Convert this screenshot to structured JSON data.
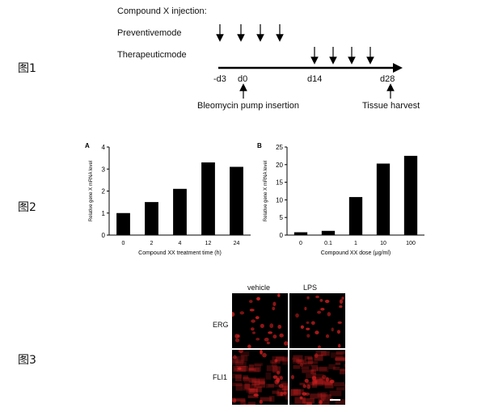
{
  "labels": {
    "fig1": "图1",
    "fig2": "图2",
    "fig3": "图3"
  },
  "timeline": {
    "title": "Compound X injection:",
    "preventive": "Preventivemode",
    "therapeutic": "Therapeuticmode",
    "ticks": [
      "-d3",
      "d0",
      "d14",
      "d28"
    ],
    "bleomycin": "Bleomycin pump insertion",
    "harvest": "Tissue harvest"
  },
  "chart_data": [
    {
      "type": "bar",
      "panel": "A",
      "categories": [
        "0",
        "2",
        "4",
        "12",
        "24"
      ],
      "values": [
        1.0,
        1.5,
        2.1,
        3.3,
        3.1
      ],
      "xlabel": "Compound XX treatment time (h)",
      "ylabel": "Relative gene X mRNA level",
      "ylim": [
        0,
        4
      ],
      "yticks": [
        "0",
        "1",
        "2",
        "3",
        "4"
      ]
    },
    {
      "type": "bar",
      "panel": "B",
      "categories": [
        "0",
        "0.1",
        "1",
        "10",
        "100"
      ],
      "values": [
        0.8,
        1.2,
        10.8,
        20.3,
        22.5
      ],
      "xlabel": "Compound XX dose (μg/ml)",
      "ylabel": "Relative gene X mRNA level",
      "ylim": [
        0,
        25
      ],
      "yticks": [
        "0",
        "5",
        "10",
        "15",
        "20",
        "25"
      ]
    }
  ],
  "micro": {
    "col_vehicle": "vehicle",
    "col_lps": "LPS",
    "row_erg": "ERG",
    "row_fli1": "FLI1",
    "stain_color": "#d42020"
  }
}
